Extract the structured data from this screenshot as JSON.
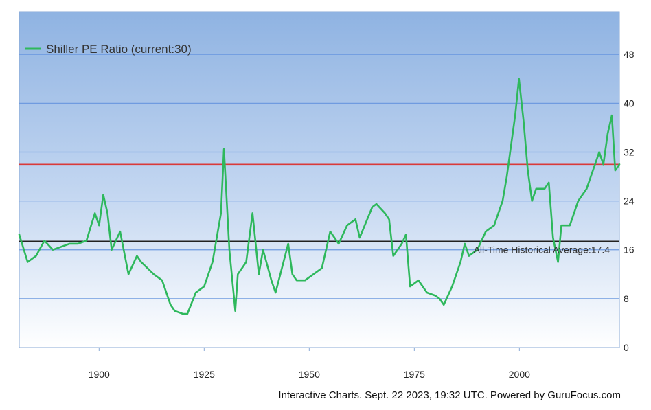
{
  "chart_data": {
    "type": "line",
    "legend": {
      "label": "Shiller PE Ratio (current:30)",
      "placement": "top-left"
    },
    "x_ticks": [
      1900,
      1925,
      1950,
      1975,
      2000
    ],
    "y_ticks": [
      0,
      8,
      16,
      24,
      32,
      40,
      48
    ],
    "xlim": [
      1881,
      2023.8
    ],
    "ylim": [
      0,
      55
    ],
    "grid": {
      "horizontal": true,
      "vertical": false
    },
    "reference_lines": [
      {
        "name": "current",
        "value": 30,
        "color": "#d93a3a"
      },
      {
        "name": "average",
        "value": 17.4,
        "color": "#222222",
        "label": "All-Time Historical Average:17.4"
      }
    ],
    "series": [
      {
        "name": "Shiller PE Ratio (current:30)",
        "color": "#2eb85c",
        "x": [
          1881,
          1883,
          1885,
          1887,
          1889,
          1891,
          1893,
          1895,
          1897,
          1899,
          1900,
          1901,
          1902,
          1903,
          1905,
          1907,
          1909,
          1910,
          1913,
          1915,
          1917,
          1918,
          1920,
          1921,
          1923,
          1925,
          1927,
          1929,
          1929.7,
          1931,
          1932.4,
          1933,
          1935,
          1936.5,
          1938,
          1939,
          1941,
          1942,
          1945,
          1946,
          1947,
          1949,
          1951,
          1953,
          1955,
          1957,
          1959,
          1961,
          1962,
          1965,
          1966,
          1968,
          1969,
          1970,
          1972,
          1973,
          1974,
          1976,
          1978,
          1980,
          1981,
          1982,
          1984,
          1986,
          1987,
          1988,
          1990,
          1992,
          1994,
          1995,
          1996,
          1997,
          1998,
          1999,
          1999.9,
          2001,
          2002,
          2003,
          2004,
          2006,
          2007,
          2008,
          2009.2,
          2010,
          2012,
          2014,
          2016,
          2018,
          2019,
          2020,
          2021,
          2022,
          2022.8,
          2023.8
        ],
        "values": [
          18.5,
          14,
          15,
          17.5,
          16,
          16.5,
          17,
          17,
          17.5,
          22,
          20,
          25,
          22,
          16,
          19,
          12,
          15,
          14,
          12,
          11,
          7,
          6,
          5.5,
          5.5,
          9,
          10,
          14,
          22,
          32.5,
          16,
          6,
          12,
          14,
          22,
          12,
          16,
          11,
          9,
          17,
          12,
          11,
          11,
          12,
          13,
          19,
          17,
          20,
          21,
          18,
          23,
          23.5,
          22,
          21,
          15,
          17,
          18.5,
          10,
          11,
          9,
          8.5,
          8,
          7,
          10,
          14,
          17,
          15,
          16,
          19,
          20,
          22,
          24,
          28,
          33,
          38,
          44,
          37,
          29,
          24,
          26,
          26,
          27,
          18,
          14,
          20,
          20,
          24,
          26,
          30,
          32,
          30,
          35,
          38,
          29,
          30
        ]
      }
    ]
  },
  "footer": {
    "text": "Interactive Charts. Sept. 22 2023, 19:32 UTC. Powered by GuruFocus.com"
  }
}
